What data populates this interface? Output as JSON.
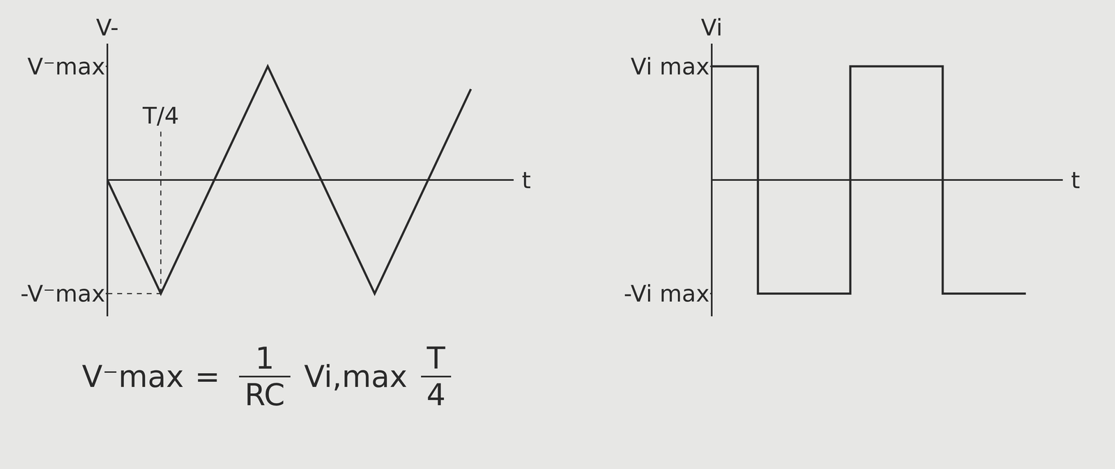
{
  "chart_data": [
    {
      "type": "line",
      "y_label": "V-",
      "x_label": "t",
      "x": [
        0,
        0.25,
        0.75,
        1.25,
        1.7
      ],
      "values": [
        0,
        -1,
        1,
        -1,
        0.8
      ],
      "color": "#2a2a2a",
      "xlim": [
        0,
        1.9
      ],
      "xticks": [],
      "ylim": [
        -1.2,
        1.2
      ],
      "yticks": [
        {
          "value": -1,
          "label": "-V⁻max"
        },
        {
          "value": 1,
          "label": "V⁻max"
        }
      ],
      "tick_labels": "y",
      "annotations": [
        {
          "text": "T/4",
          "x": 0.25,
          "y": -1
        }
      ]
    },
    {
      "type": "step",
      "y_label": "Vi",
      "x_label": "t",
      "x": [
        0,
        0.25,
        0.75,
        1.25,
        1.7
      ],
      "values": [
        1,
        -1,
        1,
        -1,
        -1
      ],
      "color": "#2a2a2a",
      "xlim": [
        0,
        1.9
      ],
      "xticks": [],
      "ylim": [
        -1.2,
        1.2
      ],
      "yticks": [
        {
          "value": -1,
          "label": "-Vi max"
        },
        {
          "value": 1,
          "label": "Vi max"
        }
      ],
      "tick_labels": "y"
    }
  ],
  "formula": {
    "lhs": "V⁻max",
    "equals": "=",
    "factor1": {
      "numerator": "1",
      "denominator": "RC"
    },
    "middle": "Vi,max",
    "factor2": {
      "numerator": "T",
      "denominator": "4"
    }
  }
}
